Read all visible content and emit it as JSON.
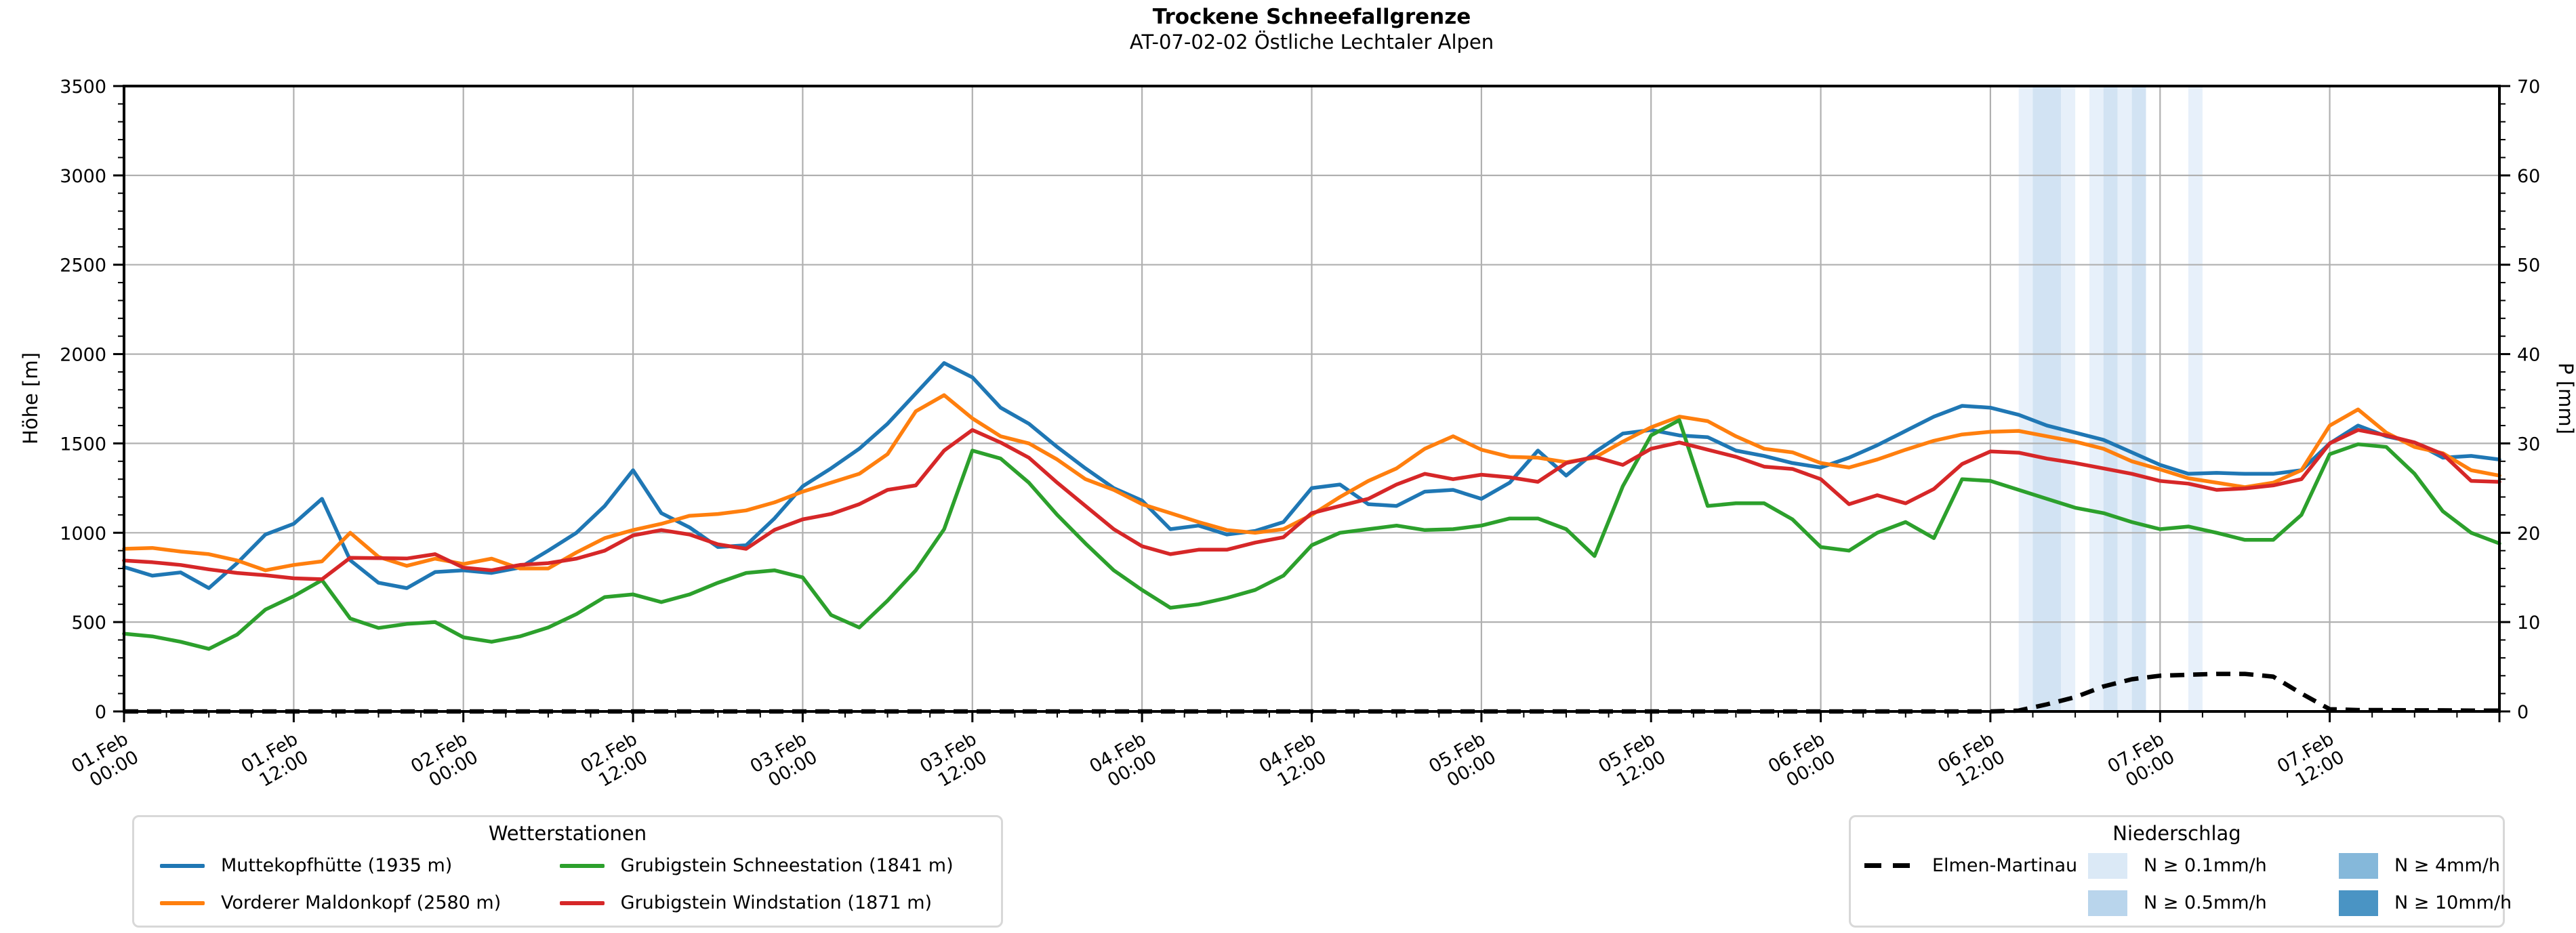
{
  "chart_data": {
    "type": "line",
    "title": "Trockene Schneefallgrenze",
    "subtitle": "AT-07-02-02 Östliche Lechtaler Alpen",
    "ylabel_left": "Höhe [m]",
    "ylabel_right": "P [mm]",
    "ylim_left": [
      0,
      3500
    ],
    "ylim_right": [
      0,
      70
    ],
    "x_hours_total": 168,
    "x_major_tick_hours": 12,
    "x_minor_tick_hours": 3,
    "y_left_major": 500,
    "y_left_minor": 100,
    "y_right_major": 10,
    "y_right_minor": 2,
    "grid": true,
    "legend_position": "below",
    "x_tick_labels": [
      "01.Feb\n00:00",
      "01.Feb\n12:00",
      "02.Feb\n00:00",
      "02.Feb\n12:00",
      "03.Feb\n00:00",
      "03.Feb\n12:00",
      "04.Feb\n00:00",
      "04.Feb\n12:00",
      "05.Feb\n00:00",
      "05.Feb\n12:00",
      "06.Feb\n00:00",
      "06.Feb\n12:00",
      "07.Feb\n00:00",
      "07.Feb\n12:00"
    ],
    "sample_step_hours": 2,
    "series": [
      {
        "name": "Muttekopfhütte (1935 m)",
        "color": "#1f77b4",
        "axis": "left",
        "values": [
          808,
          760,
          778,
          690,
          830,
          990,
          1050,
          1190,
          846,
          720,
          690,
          780,
          790,
          775,
          805,
          900,
          1000,
          1150,
          1350,
          1110,
          1030,
          920,
          930,
          1080,
          1260,
          1360,
          1470,
          1610,
          1780,
          1950,
          1870,
          1700,
          1610,
          1480,
          1360,
          1250,
          1180,
          1020,
          1040,
          990,
          1010,
          1060,
          1250,
          1270,
          1160,
          1150,
          1230,
          1240,
          1190,
          1280,
          1460,
          1320,
          1450,
          1555,
          1575,
          1545,
          1535,
          1460,
          1430,
          1390,
          1365,
          1420,
          1490,
          1570,
          1650,
          1710,
          1700,
          1660,
          1600,
          1560,
          1520,
          1450,
          1380,
          1330,
          1335,
          1330,
          1330,
          1350,
          1500,
          1600,
          1540,
          1505,
          1420,
          1430,
          1410
        ]
      },
      {
        "name": "Vorderer Maldonkopf (2580 m)",
        "color": "#ff7f0e",
        "axis": "left",
        "values": [
          910,
          915,
          895,
          880,
          845,
          790,
          820,
          840,
          1000,
          865,
          815,
          855,
          825,
          855,
          800,
          800,
          890,
          970,
          1015,
          1050,
          1095,
          1105,
          1125,
          1170,
          1230,
          1280,
          1330,
          1440,
          1680,
          1770,
          1640,
          1540,
          1500,
          1410,
          1300,
          1240,
          1160,
          1110,
          1060,
          1015,
          1000,
          1020,
          1100,
          1200,
          1290,
          1360,
          1470,
          1540,
          1465,
          1425,
          1420,
          1395,
          1420,
          1510,
          1590,
          1650,
          1625,
          1540,
          1470,
          1450,
          1390,
          1365,
          1410,
          1465,
          1515,
          1550,
          1565,
          1570,
          1540,
          1510,
          1470,
          1400,
          1355,
          1305,
          1280,
          1255,
          1280,
          1350,
          1600,
          1690,
          1560,
          1480,
          1445,
          1350,
          1320
        ]
      },
      {
        "name": "Grubigstein Schneestation (1841 m)",
        "color": "#2ca02c",
        "axis": "left",
        "values": [
          435,
          420,
          390,
          350,
          430,
          570,
          645,
          735,
          520,
          467,
          490,
          500,
          415,
          390,
          420,
          470,
          545,
          640,
          655,
          612,
          655,
          720,
          775,
          790,
          750,
          540,
          470,
          620,
          790,
          1020,
          1460,
          1415,
          1280,
          1100,
          940,
          790,
          680,
          580,
          600,
          635,
          680,
          760,
          930,
          1000,
          1020,
          1040,
          1015,
          1020,
          1040,
          1080,
          1080,
          1020,
          870,
          1260,
          1545,
          1630,
          1150,
          1165,
          1165,
          1075,
          920,
          900,
          1000,
          1060,
          970,
          1300,
          1290,
          1240,
          1190,
          1140,
          1110,
          1060,
          1020,
          1035,
          1000,
          960,
          960,
          1100,
          1440,
          1495,
          1480,
          1330,
          1120,
          1000,
          940
        ]
      },
      {
        "name": "Grubigstein Windstation (1871 m)",
        "color": "#d62728",
        "axis": "left",
        "values": [
          845,
          835,
          820,
          795,
          775,
          762,
          745,
          740,
          860,
          858,
          856,
          880,
          805,
          790,
          820,
          830,
          855,
          900,
          985,
          1015,
          990,
          935,
          910,
          1016,
          1075,
          1105,
          1160,
          1240,
          1265,
          1460,
          1575,
          1505,
          1420,
          1280,
          1150,
          1020,
          925,
          880,
          905,
          905,
          945,
          975,
          1110,
          1150,
          1190,
          1270,
          1330,
          1300,
          1325,
          1310,
          1285,
          1390,
          1425,
          1380,
          1470,
          1505,
          1465,
          1425,
          1370,
          1357,
          1300,
          1160,
          1210,
          1165,
          1245,
          1385,
          1455,
          1448,
          1415,
          1390,
          1360,
          1330,
          1290,
          1275,
          1240,
          1248,
          1265,
          1300,
          1500,
          1575,
          1545,
          1505,
          1440,
          1290,
          1285
        ]
      }
    ],
    "precipitation_line": {
      "name": "Elmen-Martinau",
      "color": "#000000",
      "style": "dashed",
      "axis": "right",
      "values": [
        0,
        0,
        0,
        0,
        0,
        0,
        0,
        0,
        0,
        0,
        0,
        0,
        0,
        0,
        0,
        0,
        0,
        0,
        0,
        0,
        0,
        0,
        0,
        0,
        0,
        0,
        0,
        0,
        0,
        0,
        0,
        0,
        0,
        0,
        0,
        0,
        0,
        0,
        0,
        0,
        0,
        0,
        0,
        0,
        0,
        0,
        0,
        0,
        0,
        0,
        0,
        0,
        0,
        0,
        0,
        0,
        0,
        0,
        0,
        0,
        0,
        0,
        0,
        0,
        0,
        0,
        0,
        0.1,
        0.8,
        1.6,
        2.8,
        3.6,
        4,
        4.1,
        4.2,
        4.2,
        3.9,
        2,
        0.25,
        0.15,
        0.15,
        0.12,
        0.12,
        0.1,
        0.1
      ]
    },
    "precip_bands": [
      {
        "start_h": 134,
        "end_h": 135,
        "class": "0.1"
      },
      {
        "start_h": 135,
        "end_h": 137,
        "class": "0.5"
      },
      {
        "start_h": 137,
        "end_h": 138,
        "class": "0.1"
      },
      {
        "start_h": 139,
        "end_h": 140,
        "class": "0.1"
      },
      {
        "start_h": 140,
        "end_h": 141,
        "class": "0.5"
      },
      {
        "start_h": 141,
        "end_h": 142,
        "class": "0.1"
      },
      {
        "start_h": 142,
        "end_h": 143,
        "class": "0.5"
      },
      {
        "start_h": 146,
        "end_h": 147,
        "class": "0.1"
      }
    ],
    "band_colors": {
      "0.1": "#e7f0fa",
      "0.5": "#d2e3f3"
    },
    "legends": {
      "stations": {
        "title": "Wetterstationen"
      },
      "precip": {
        "title": "Niederschlag",
        "line_item": "Elmen-Martinau",
        "classes": [
          {
            "label": "N ≥ 0.1mm/h",
            "color": "#dbe9f6"
          },
          {
            "label": "N ≥ 0.5mm/h",
            "color": "#b9d5ec"
          },
          {
            "label": "N ≥ 4mm/h",
            "color": "#85b8da"
          },
          {
            "label": "N ≥ 10mm/h",
            "color": "#4a94c4"
          }
        ]
      }
    }
  }
}
